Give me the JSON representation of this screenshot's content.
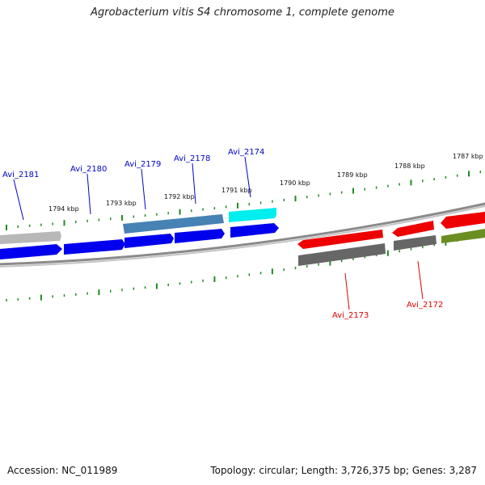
{
  "title": "Agrobacterium vitis S4 chromosome 1, complete genome",
  "footer": {
    "accession": "Accession: NC_011989",
    "summary": "Topology: circular; Length: 3,726,375 bp; Genes: 3,287"
  },
  "colors": {
    "tick": "#1f8a1f",
    "backbone": "#8a8a8a",
    "label_blue": "#0000cc",
    "label_red": "#dd0000"
  },
  "kbp_labels": [
    "1794 kbp",
    "1793 kbp",
    "1792 kbp",
    "1791 kbp",
    "1790 kbp",
    "1789 kbp",
    "1788 kbp",
    "1787 kbp"
  ],
  "genes": [
    {
      "name": "Avi_2181",
      "strand": "+",
      "color": "#0000ee"
    },
    {
      "name": "Avi_2180",
      "strand": "+",
      "color": "#0000ee"
    },
    {
      "name": "Avi_2179",
      "strand": "+",
      "color": "#0000ee"
    },
    {
      "name": "Avi_2178",
      "strand": "+",
      "color": "#0000ee"
    },
    {
      "name": "Avi_2174",
      "strand": "+",
      "color": "#0000ee"
    },
    {
      "name": "Avi_2173",
      "strand": "-",
      "color": "#ee0000"
    },
    {
      "name": "Avi_2172",
      "strand": "-",
      "color": "#ee0000"
    }
  ]
}
